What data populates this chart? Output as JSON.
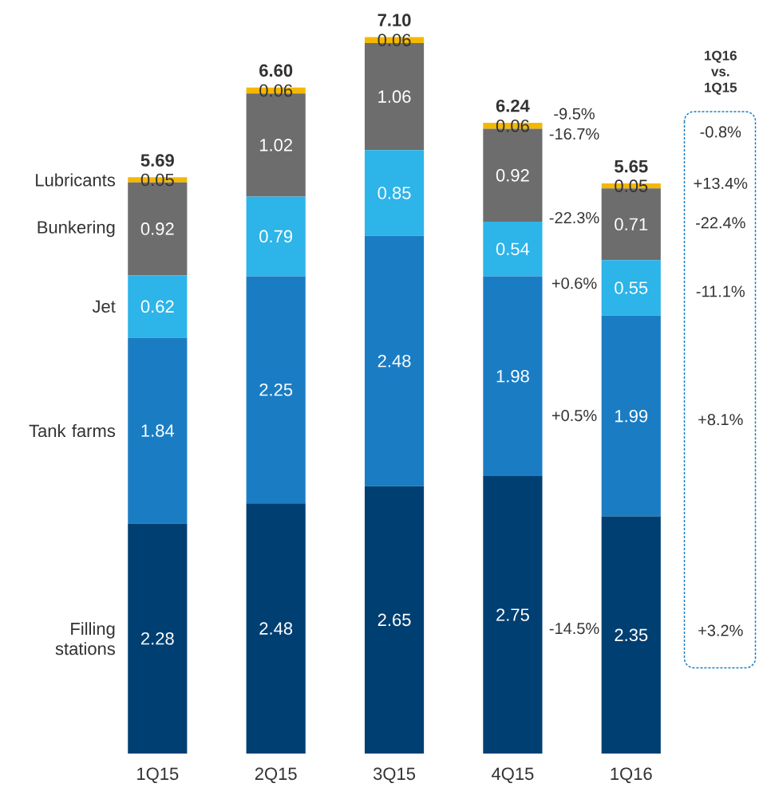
{
  "chart_data": {
    "type": "bar",
    "stacked": true,
    "data_labels": true,
    "categories": [
      "1Q15",
      "2Q15",
      "3Q15",
      "4Q15",
      "1Q16"
    ],
    "series": [
      {
        "name": "Filling stations",
        "color": "#003f72",
        "values": [
          2.28,
          2.48,
          2.65,
          2.75,
          2.35
        ]
      },
      {
        "name": "Tank farms",
        "color": "#1a7dc4",
        "values": [
          1.84,
          2.25,
          2.48,
          1.98,
          1.99
        ]
      },
      {
        "name": "Jet",
        "color": "#2db4e8",
        "values": [
          0.62,
          0.79,
          0.85,
          0.54,
          0.55
        ]
      },
      {
        "name": "Bunkering",
        "color": "#6d6d6d",
        "values": [
          0.92,
          1.02,
          1.06,
          0.92,
          0.71
        ]
      },
      {
        "name": "Lubricants",
        "color": "#f5b800",
        "values": [
          0.05,
          0.06,
          0.06,
          0.06,
          0.05
        ]
      }
    ],
    "totals": [
      "5.69",
      "6.60",
      "7.10",
      "6.24",
      "5.65"
    ],
    "annotations": [
      "1Q16 vs. 1Q15",
      "-9.5%",
      "-16.7%",
      "-22.3%",
      "+0.6%",
      "+0.5%",
      "-14.5%",
      "-0.8%",
      "+13.4%",
      "-22.4%",
      "-11.1%",
      "+8.1%",
      "+3.2%"
    ]
  }
}
